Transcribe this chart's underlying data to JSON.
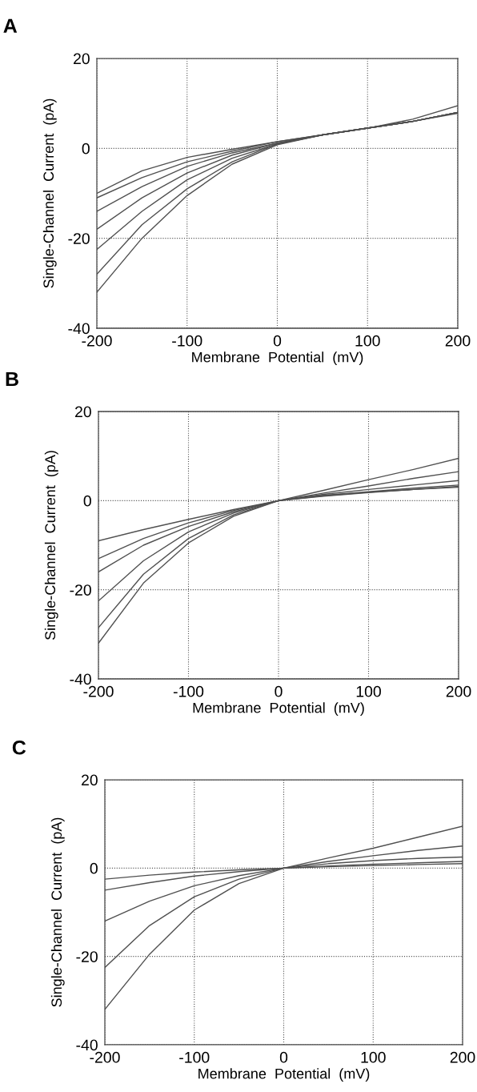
{
  "chart_data": [
    {
      "type": "line",
      "title": "A",
      "xlabel": "Membrane  Potential  (mV)",
      "ylabel": "Single-Channel  Current  (pA)",
      "x": [
        -200,
        -150,
        -100,
        -50,
        0,
        50,
        100,
        150,
        200
      ],
      "xlim": [
        -200,
        200
      ],
      "ylim": [
        -40,
        20
      ],
      "xticks": [
        -200,
        -100,
        0,
        100,
        200
      ],
      "yticks": [
        -40,
        -20,
        0,
        20
      ],
      "grid": true,
      "marker": "none",
      "line_style": "solid",
      "series": [
        {
          "color": "#505050",
          "values": [
            -10,
            -5,
            -2,
            -0.2,
            1.5,
            3,
            4.5,
            6.5,
            9.5
          ]
        },
        {
          "color": "#505050",
          "values": [
            -11,
            -6.5,
            -3,
            -0.6,
            1.5,
            3,
            4.5,
            6,
            8
          ]
        },
        {
          "color": "#505050",
          "values": [
            -14,
            -8.5,
            -4,
            -1,
            1.2,
            3,
            4.5,
            6,
            8
          ]
        },
        {
          "color": "#505050",
          "values": [
            -18,
            -11,
            -5.5,
            -1.5,
            1.2,
            3,
            4.5,
            6,
            8
          ]
        },
        {
          "color": "#505050",
          "values": [
            -22.5,
            -14,
            -7,
            -2.2,
            1,
            3,
            4.5,
            6,
            8
          ]
        },
        {
          "color": "#505050",
          "values": [
            -28,
            -17,
            -9,
            -3,
            1,
            3,
            4.5,
            6,
            8
          ]
        },
        {
          "color": "#505050",
          "values": [
            -32,
            -20,
            -10.5,
            -3.5,
            0.8,
            3,
            4.5,
            6,
            7.8
          ]
        }
      ]
    },
    {
      "type": "line",
      "title": "B",
      "xlabel": "Membrane  Potential  (mV)",
      "ylabel": "Single-Channel  Current  (pA)",
      "x": [
        -200,
        -150,
        -100,
        -50,
        0,
        50,
        100,
        150,
        200
      ],
      "xlim": [
        -200,
        200
      ],
      "ylim": [
        -40,
        20
      ],
      "xticks": [
        -200,
        -100,
        0,
        100,
        200
      ],
      "yticks": [
        -40,
        -20,
        0,
        20
      ],
      "grid": true,
      "marker": "none",
      "line_style": "solid",
      "series": [
        {
          "color": "#505050",
          "values": [
            -9,
            -6.5,
            -4.2,
            -2,
            0,
            2.3,
            4.7,
            7,
            9.5
          ]
        },
        {
          "color": "#505050",
          "values": [
            -13,
            -8.5,
            -5,
            -2.2,
            0,
            1.7,
            3.3,
            5,
            6.5
          ]
        },
        {
          "color": "#505050",
          "values": [
            -16,
            -10,
            -5.8,
            -2.5,
            0,
            1.4,
            2.5,
            3.5,
            4.5
          ]
        },
        {
          "color": "#505050",
          "values": [
            -22.5,
            -13.5,
            -7,
            -2.8,
            0,
            1.2,
            2,
            2.8,
            3.5
          ]
        },
        {
          "color": "#505050",
          "values": [
            -28.5,
            -16.5,
            -8.5,
            -3.2,
            0,
            1.1,
            1.9,
            2.5,
            3
          ]
        },
        {
          "color": "#505050",
          "values": [
            -32,
            -18.5,
            -9.5,
            -3.5,
            0,
            1,
            1.8,
            2.5,
            3.2
          ]
        }
      ]
    },
    {
      "type": "line",
      "title": "C",
      "xlabel": "Membrane  Potential  (mV)",
      "ylabel": "Single-Channel  Current  (pA)",
      "x": [
        -200,
        -150,
        -100,
        -50,
        0,
        50,
        100,
        150,
        200
      ],
      "xlim": [
        -200,
        200
      ],
      "ylim": [
        -40,
        20
      ],
      "xticks": [
        -200,
        -100,
        0,
        100,
        200
      ],
      "yticks": [
        -40,
        -20,
        0,
        20
      ],
      "grid": true,
      "marker": "none",
      "line_style": "solid",
      "series": [
        {
          "color": "#505050",
          "values": [
            -2.5,
            -1.6,
            -0.9,
            -0.4,
            0,
            0.3,
            0.6,
            0.8,
            1
          ]
        },
        {
          "color": "#505050",
          "values": [
            -5,
            -3.3,
            -1.8,
            -0.8,
            0,
            0.5,
            0.9,
            1.2,
            1.5
          ]
        },
        {
          "color": "#505050",
          "values": [
            -12,
            -7.5,
            -4,
            -1.7,
            0,
            1,
            1.7,
            2.2,
            2.5
          ]
        },
        {
          "color": "#505050",
          "values": [
            -22.5,
            -13,
            -6.5,
            -2.5,
            0,
            1.5,
            2.8,
            4,
            5
          ]
        },
        {
          "color": "#505050",
          "values": [
            -32,
            -19.5,
            -9.5,
            -3.5,
            0,
            2.3,
            4.5,
            7,
            9.5
          ]
        }
      ]
    }
  ]
}
